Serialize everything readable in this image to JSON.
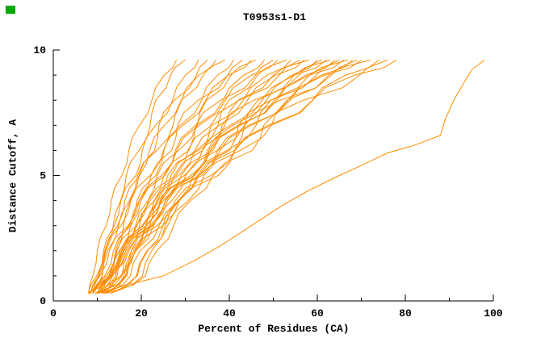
{
  "chart_data": {
    "type": "line",
    "title": "T0953s1-D1",
    "xlabel": "Percent of Residues (CA)",
    "ylabel": "Distance Cutoff, A",
    "xlim": [
      0,
      100
    ],
    "ylim": [
      0,
      10
    ],
    "x_major_ticks": [
      0,
      20,
      40,
      60,
      80,
      100
    ],
    "x_minor_ticks": [
      10,
      30,
      50,
      70,
      90
    ],
    "y_major_ticks": [
      0,
      5,
      10
    ],
    "y_minor_ticks": [
      1,
      2,
      3,
      4,
      6,
      7,
      8,
      9
    ],
    "grid": "off",
    "legend": "none",
    "line_color": "#ff8c00",
    "axis_color": "#000000",
    "marker_color": "#00a800",
    "y_grid": [
      0.3,
      1,
      2,
      3,
      4,
      5,
      6,
      7,
      8,
      9,
      9.6
    ],
    "profiles": [
      [
        0,
        0.05,
        0.1,
        0.2,
        0.26,
        0.38,
        0.46,
        0.58,
        0.72,
        0.86,
        1
      ],
      [
        0,
        0.1,
        0.14,
        0.22,
        0.3,
        0.36,
        0.5,
        0.62,
        0.68,
        0.84,
        1
      ],
      [
        0,
        0.07,
        0.12,
        0.22,
        0.28,
        0.42,
        0.48,
        0.6,
        0.76,
        0.88,
        1
      ],
      [
        0,
        0.14,
        0.18,
        0.24,
        0.3,
        0.38,
        0.52,
        0.56,
        0.7,
        0.9,
        1
      ]
    ],
    "series": [
      {
        "start_x": 8,
        "end_x": 28,
        "profile": 0
      },
      {
        "start_x": 9,
        "end_x": 30,
        "profile": 1
      },
      {
        "start_x": 8.5,
        "end_x": 33,
        "profile": 2
      },
      {
        "start_x": 10,
        "end_x": 35,
        "profile": 3
      },
      {
        "start_x": 9,
        "end_x": 37,
        "profile": 0
      },
      {
        "start_x": 8,
        "end_x": 39,
        "profile": 1
      },
      {
        "start_x": 10.5,
        "end_x": 41,
        "profile": 2
      },
      {
        "start_x": 9.5,
        "end_x": 43,
        "profile": 3
      },
      {
        "start_x": 8,
        "end_x": 45,
        "profile": 0
      },
      {
        "start_x": 11,
        "end_x": 46,
        "profile": 1
      },
      {
        "start_x": 9,
        "end_x": 48,
        "profile": 2
      },
      {
        "start_x": 10,
        "end_x": 50,
        "profile": 3
      },
      {
        "start_x": 8.5,
        "end_x": 51,
        "profile": 0
      },
      {
        "start_x": 12,
        "end_x": 53,
        "profile": 1
      },
      {
        "start_x": 9,
        "end_x": 54,
        "profile": 2
      },
      {
        "start_x": 10,
        "end_x": 56,
        "profile": 3
      },
      {
        "start_x": 11,
        "end_x": 57,
        "profile": 0
      },
      {
        "start_x": 8,
        "end_x": 58,
        "profile": 1
      },
      {
        "start_x": 12,
        "end_x": 60,
        "profile": 2
      },
      {
        "start_x": 9.5,
        "end_x": 61,
        "profile": 3
      },
      {
        "start_x": 10,
        "end_x": 62,
        "profile": 0
      },
      {
        "start_x": 11.5,
        "end_x": 63,
        "profile": 1
      },
      {
        "start_x": 9,
        "end_x": 64,
        "profile": 2
      },
      {
        "start_x": 13,
        "end_x": 65,
        "profile": 3
      },
      {
        "start_x": 10,
        "end_x": 66,
        "profile": 0
      },
      {
        "start_x": 12,
        "end_x": 67,
        "profile": 1
      },
      {
        "start_x": 9,
        "end_x": 68,
        "profile": 2
      },
      {
        "start_x": 11,
        "end_x": 69,
        "profile": 3
      },
      {
        "start_x": 10.5,
        "end_x": 70,
        "profile": 0
      },
      {
        "start_x": 13,
        "end_x": 72,
        "profile": 1
      },
      {
        "start_x": 11,
        "end_x": 74,
        "profile": 2
      },
      {
        "start_x": 12,
        "end_x": 76,
        "profile": 3
      },
      {
        "start_x": 10,
        "end_x": 78,
        "profile": 0
      },
      {
        "points": [
          [
            10,
            0.3
          ],
          [
            16,
            0.6
          ],
          [
            25,
            1
          ],
          [
            32,
            1.6
          ],
          [
            38,
            2.2
          ],
          [
            45,
            3
          ],
          [
            52,
            3.8
          ],
          [
            58,
            4.4
          ],
          [
            65,
            5
          ],
          [
            70,
            5.4
          ],
          [
            76,
            5.9
          ],
          [
            82,
            6.2
          ],
          [
            88,
            6.6
          ],
          [
            89,
            7.2
          ],
          [
            91,
            8
          ],
          [
            93,
            8.6
          ],
          [
            95,
            9.2
          ],
          [
            98,
            9.6
          ]
        ]
      }
    ]
  },
  "x_tick_labels": [
    "0",
    "20",
    "40",
    "60",
    "80",
    "100"
  ],
  "y_tick_labels": [
    "0",
    "5",
    "10"
  ]
}
